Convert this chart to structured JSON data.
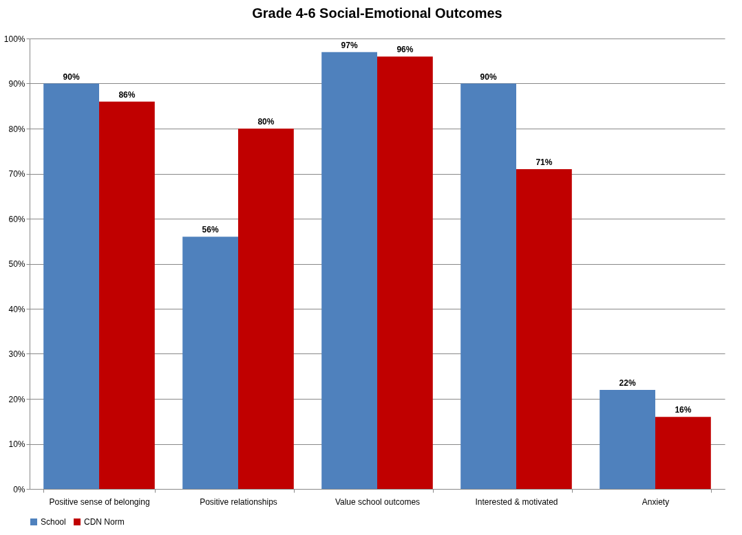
{
  "chart_data": {
    "type": "bar",
    "title": "Grade 4-6 Social-Emotional Outcomes",
    "categories": [
      "Positive sense of belonging",
      "Positive relationships",
      "Value school outcomes",
      "Interested & motivated",
      "Anxiety"
    ],
    "series": [
      {
        "name": "School",
        "color": "#4f81bd",
        "values": [
          90,
          56,
          97,
          90,
          22
        ],
        "value_labels": [
          "90%",
          "56%",
          "97%",
          "90%",
          "22%"
        ]
      },
      {
        "name": "CDN Norm",
        "color": "#c00000",
        "values": [
          86,
          80,
          96,
          71,
          16
        ],
        "value_labels": [
          "86%",
          "80%",
          "96%",
          "71%",
          "16%"
        ]
      }
    ],
    "ylim": [
      0,
      100
    ],
    "yticks": [
      {
        "value": 0,
        "label": "0%"
      },
      {
        "value": 10,
        "label": "10%"
      },
      {
        "value": 20,
        "label": "20%"
      },
      {
        "value": 30,
        "label": "30%"
      },
      {
        "value": 40,
        "label": "40%"
      },
      {
        "value": 50,
        "label": "50%"
      },
      {
        "value": 60,
        "label": "60%"
      },
      {
        "value": 70,
        "label": "70%"
      },
      {
        "value": 80,
        "label": "80%"
      },
      {
        "value": 90,
        "label": "90%"
      },
      {
        "value": 100,
        "label": "100%"
      }
    ],
    "grid": "y",
    "legend": "bottom"
  }
}
